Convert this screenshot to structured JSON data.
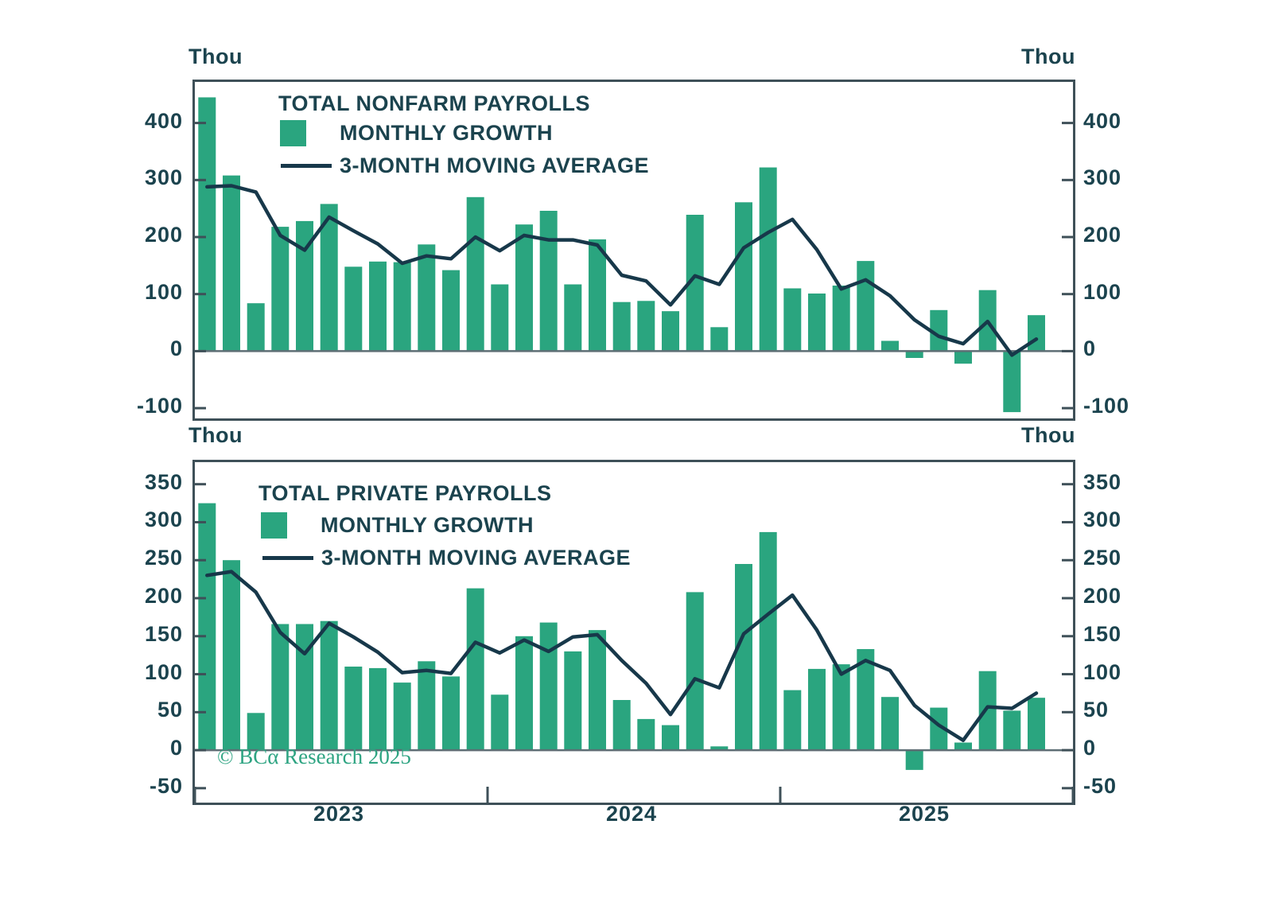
{
  "colors": {
    "bar": "#2aa57f",
    "line": "#17384a",
    "text": "#1b434e",
    "border": "#3e5058",
    "zero_line": "#5e6e74",
    "copyright_green": "#2ea482",
    "background": "#ffffff"
  },
  "copyright": {
    "text": "© BCα Research 2025"
  },
  "x_axis": {
    "year_labels": [
      "2023",
      "2024",
      "2025"
    ]
  },
  "chart_data": [
    {
      "type": "bar",
      "title": "TOTAL NONFARM PAYROLLS",
      "unit": "Thou",
      "unit_right": "Thou",
      "legend_position": "top-left-inside",
      "grid": false,
      "ylim": [
        -118,
        472
      ],
      "yticks": [
        400,
        300,
        200,
        100,
        0,
        -100
      ],
      "xticks_years": [
        "2023",
        "2024",
        "2025"
      ],
      "x": [
        "2023-01",
        "2023-02",
        "2023-03",
        "2023-04",
        "2023-05",
        "2023-06",
        "2023-07",
        "2023-08",
        "2023-09",
        "2023-10",
        "2023-11",
        "2023-12",
        "2024-01",
        "2024-02",
        "2024-03",
        "2024-04",
        "2024-05",
        "2024-06",
        "2024-07",
        "2024-08",
        "2024-09",
        "2024-10",
        "2024-11",
        "2024-12",
        "2025-01",
        "2025-02",
        "2025-03",
        "2025-04",
        "2025-05",
        "2025-06",
        "2025-07",
        "2025-08",
        "2025-09",
        "2025-10",
        "2025-11"
      ],
      "series": [
        {
          "name": "MONTHLY GROWTH",
          "type": "bar",
          "values": [
            445,
            308,
            84,
            218,
            228,
            258,
            148,
            157,
            156,
            187,
            142,
            270,
            117,
            222,
            246,
            117,
            196,
            86,
            88,
            70,
            239,
            42,
            261,
            322,
            110,
            101,
            115,
            158,
            18,
            -12,
            72,
            -22,
            107,
            -107,
            63
          ]
        },
        {
          "name": "3-MONTH MOVING AVERAGE",
          "type": "line",
          "values": [
            288,
            290,
            279,
            203,
            177,
            235,
            211,
            188,
            154,
            167,
            162,
            200,
            176,
            203,
            195,
            195,
            186,
            133,
            123,
            81,
            132,
            117,
            181,
            208,
            231,
            178,
            109,
            125,
            97,
            55,
            26,
            13,
            52,
            -7,
            21
          ]
        }
      ]
    },
    {
      "type": "bar",
      "title": "TOTAL PRIVATE PAYROLLS",
      "unit": "Thou",
      "unit_right": "Thou",
      "legend_position": "top-left-inside",
      "grid": false,
      "ylim": [
        -69,
        379
      ],
      "yticks": [
        350,
        300,
        250,
        200,
        150,
        100,
        50,
        0,
        -50
      ],
      "xticks_years": [
        "2023",
        "2024",
        "2025"
      ],
      "x": [
        "2023-01",
        "2023-02",
        "2023-03",
        "2023-04",
        "2023-05",
        "2023-06",
        "2023-07",
        "2023-08",
        "2023-09",
        "2023-10",
        "2023-11",
        "2023-12",
        "2024-01",
        "2024-02",
        "2024-03",
        "2024-04",
        "2024-05",
        "2024-06",
        "2024-07",
        "2024-08",
        "2024-09",
        "2024-10",
        "2024-11",
        "2024-12",
        "2025-01",
        "2025-02",
        "2025-03",
        "2025-04",
        "2025-05",
        "2025-06",
        "2025-07",
        "2025-08",
        "2025-09",
        "2025-10",
        "2025-11"
      ],
      "series": [
        {
          "name": "MONTHLY GROWTH",
          "type": "bar",
          "values": [
            325,
            250,
            49,
            166,
            166,
            170,
            110,
            108,
            89,
            117,
            97,
            213,
            73,
            150,
            168,
            130,
            158,
            66,
            41,
            33,
            208,
            5,
            245,
            287,
            79,
            107,
            113,
            133,
            70,
            -26,
            56,
            10,
            104,
            52,
            69
          ]
        },
        {
          "name": "3-MONTH MOVING AVERAGE",
          "type": "line",
          "values": [
            230,
            235,
            208,
            155,
            127,
            167,
            149,
            129,
            102,
            105,
            101,
            142,
            128,
            145,
            130,
            149,
            152,
            118,
            88,
            47,
            94,
            82,
            153,
            179,
            204,
            158,
            100,
            118,
            105,
            59,
            33,
            13,
            57,
            55,
            75
          ]
        }
      ]
    }
  ]
}
